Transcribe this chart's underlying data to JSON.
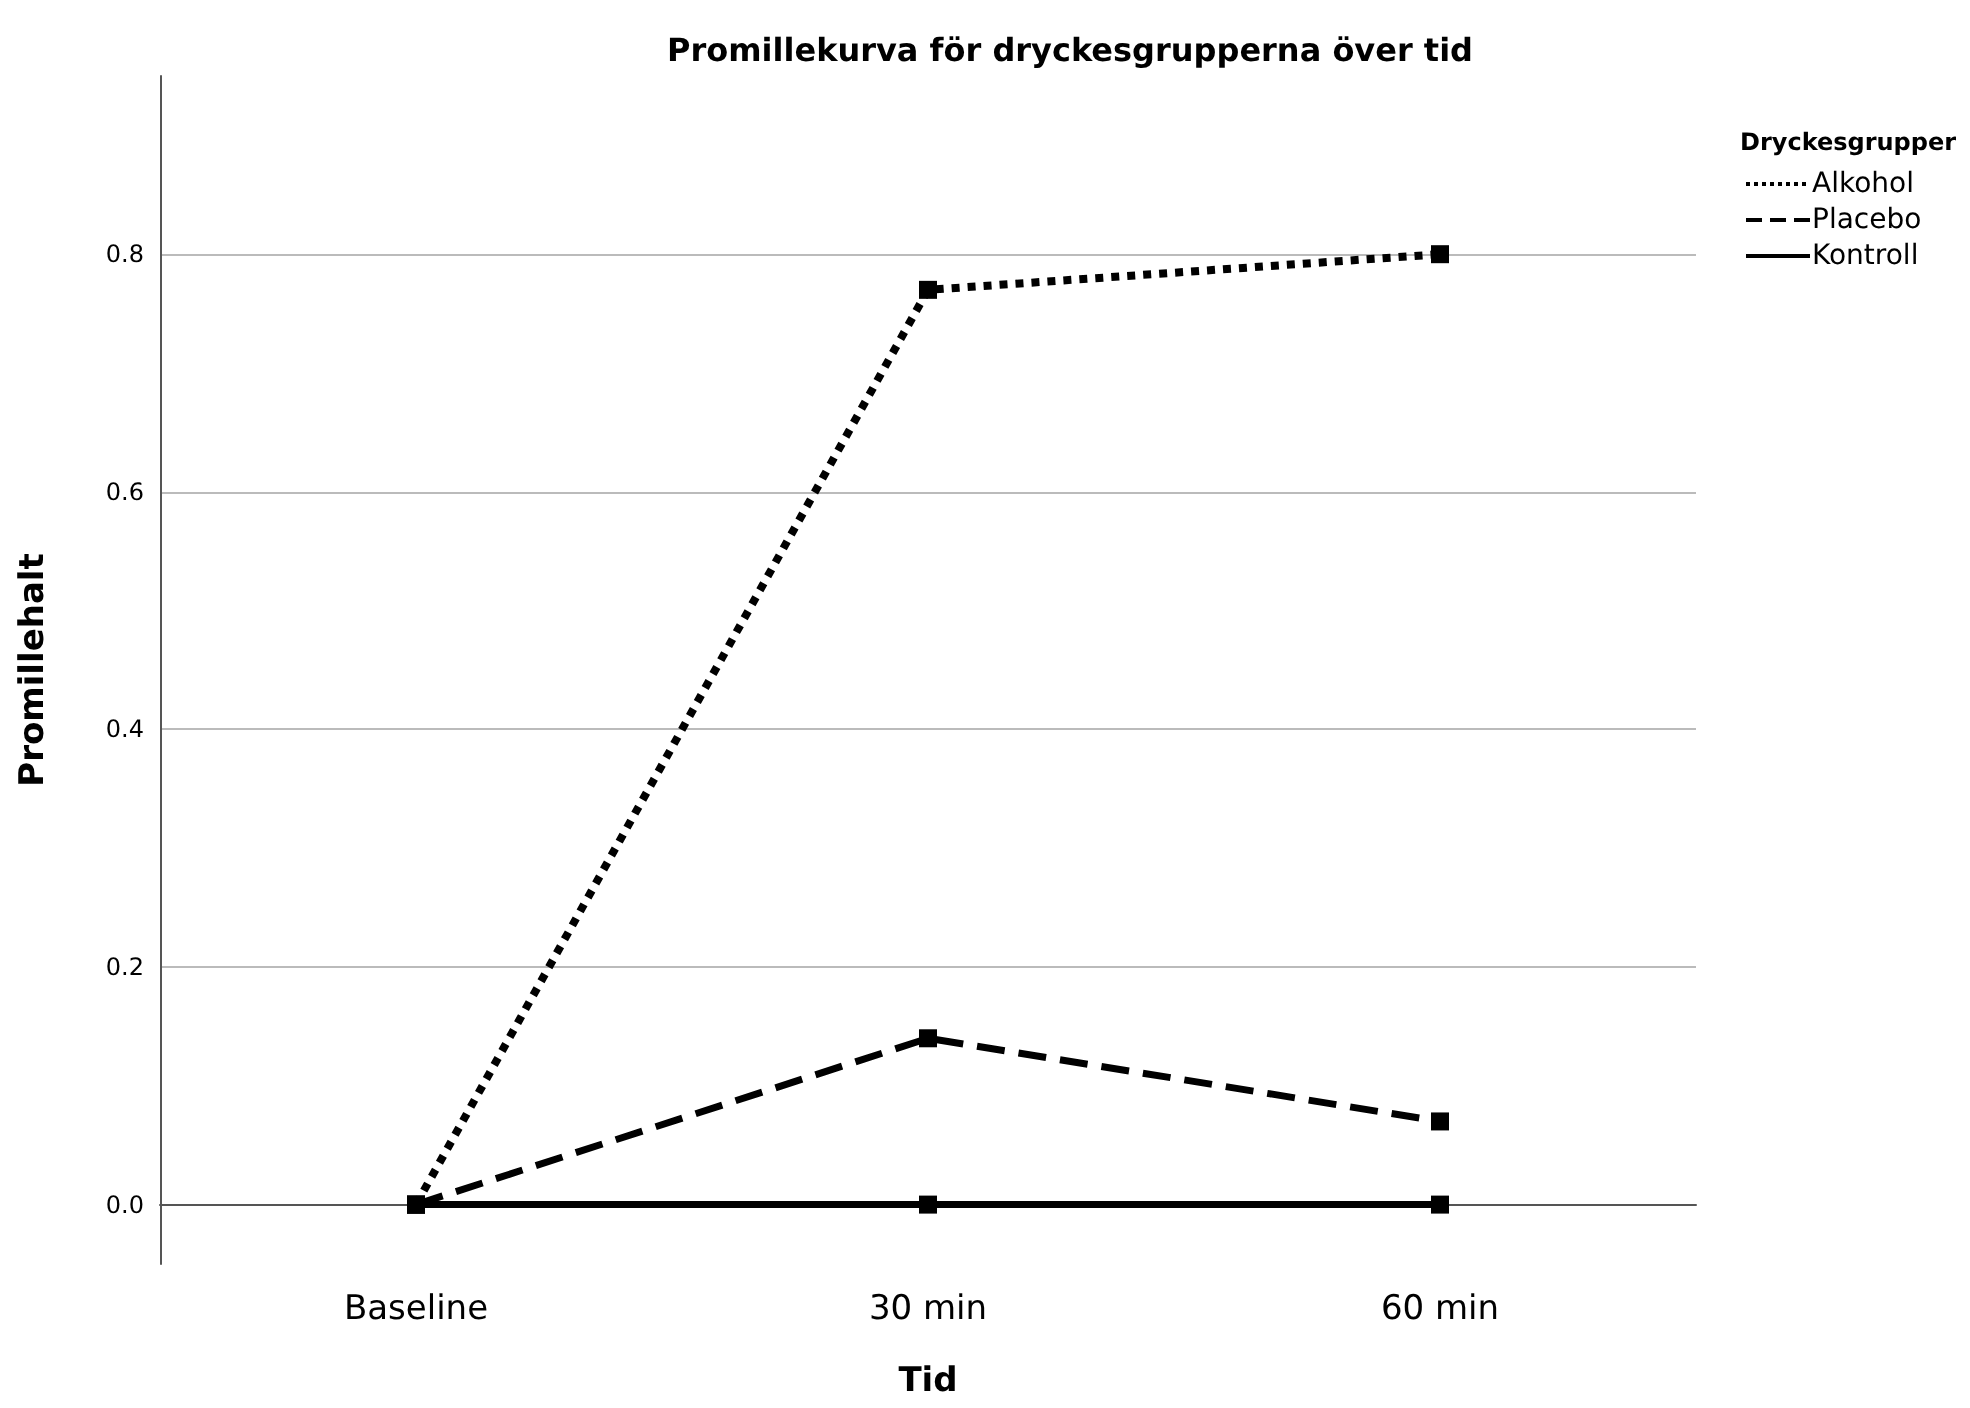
{
  "chart_data": {
    "type": "line",
    "title": "Promillekurva för dryckesgrupperna över tid",
    "xlabel": "Tid",
    "ylabel": "Promillehalt",
    "legend_title": "Dryckesgrupper",
    "categories": [
      "Baseline",
      "30 min",
      "60 min"
    ],
    "series": [
      {
        "name": "Alkohol",
        "color": "#000000",
        "line_style": "dotted",
        "values": [
          0,
          0.77,
          0.8
        ]
      },
      {
        "name": "Placebo",
        "color": "#000000",
        "line_style": "dashed",
        "values": [
          0,
          0.14,
          0.07
        ]
      },
      {
        "name": "Kontroll",
        "color": "#000000",
        "line_style": "solid",
        "values": [
          0,
          0,
          0
        ]
      }
    ],
    "ylim": [
      -0.05,
      0.95
    ],
    "yticks": [
      {
        "value": 0,
        "label": "0.0"
      },
      {
        "value": 0.2,
        "label": "0.2"
      },
      {
        "value": 0.4,
        "label": "0.4"
      },
      {
        "value": 0.6,
        "label": "0.6"
      },
      {
        "value": 0.8,
        "label": "0.8"
      }
    ],
    "grid": "y",
    "legend": "top right",
    "marker": "square"
  }
}
